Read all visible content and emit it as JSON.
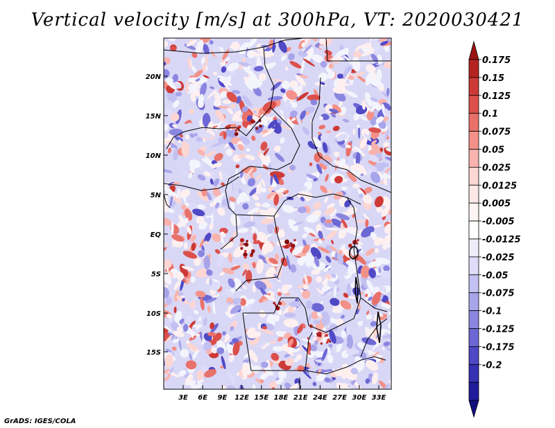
{
  "title": "Vertical velocity [m/s] at 300hPa, VT: 2020030421",
  "credit": "GrADS: IGES/COLA",
  "colors": {
    "positive": [
      "#fff0f0",
      "#fcd6d3",
      "#f9b3ae",
      "#f39188",
      "#e8716a",
      "#dc504b",
      "#cd3a36",
      "#b42320",
      "#9b1414",
      "#7f0808"
    ],
    "negative": [
      "#f4f4fc",
      "#dedcf8",
      "#c3c1f2",
      "#a7a4ea",
      "#8a86e0",
      "#6c67d4",
      "#4f49c6",
      "#3630b3",
      "#211c9c",
      "#130e80"
    ],
    "border": "#000000"
  },
  "map": {
    "lat_labels": [
      "20N",
      "15N",
      "10N",
      "5N",
      "EQ",
      "5S",
      "10S",
      "15S"
    ],
    "lon_labels": [
      "3E",
      "6E",
      "9E",
      "12E",
      "15E",
      "18E",
      "21E",
      "24E",
      "27E",
      "30E",
      "33E"
    ]
  },
  "colorbar": {
    "labels": [
      "0.175",
      "0.15",
      "0.125",
      "0.1",
      "0.075",
      "0.05",
      "0.025",
      "0.0125",
      "0.005",
      "-0.005",
      "-0.0125",
      "-0.025",
      "-0.05",
      "-0.075",
      "-0.1",
      "-0.125",
      "-0.175",
      "-0.2"
    ],
    "colors": [
      "#b42320",
      "#cd3a36",
      "#dc504b",
      "#e8716a",
      "#f39188",
      "#f9b3ae",
      "#fcd6d3",
      "#fde8e6",
      "#fff4f4",
      "#ffffff",
      "#eeeefb",
      "#dedcf8",
      "#c3c1f2",
      "#a7a4ea",
      "#8a86e0",
      "#6c67d4",
      "#4f49c6",
      "#3630b3",
      "#211c9c"
    ]
  }
}
